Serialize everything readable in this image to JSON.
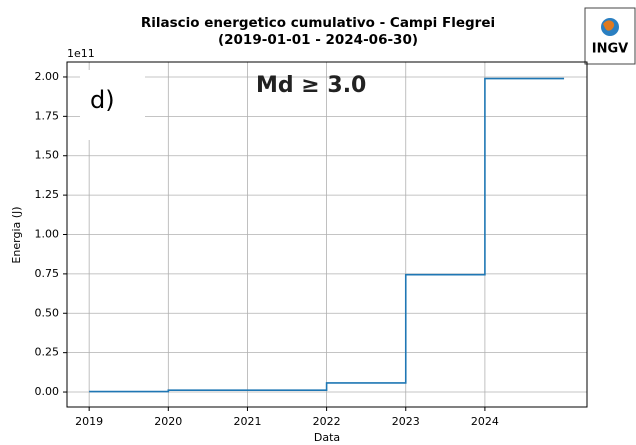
{
  "chart_data": {
    "type": "step",
    "title": "Rilascio energetico cumulativo - Campi Flegrei",
    "subtitle": "(2019-01-01 - 2024-06-30)",
    "xlabel": "Data",
    "ylabel": "Energia (J)",
    "y_offset": "1e11",
    "annotations": [
      "d)",
      "Md ≥ 3.0"
    ],
    "logo": "INGV",
    "x": [
      2019,
      2020,
      2021,
      2022,
      2023,
      2024,
      2025
    ],
    "series": [
      {
        "color": "#1f77b4",
        "values": [
          0.003,
          0.012,
          0.012,
          0.058,
          0.745,
          1.99,
          1.99
        ]
      }
    ],
    "xlim": [
      2018.72,
      2025.29
    ],
    "xticks": [
      2019,
      2020,
      2021,
      2022,
      2023,
      2024
    ],
    "ylim": [
      -0.095,
      2.095
    ],
    "yticks": [
      {
        "value": 0,
        "label": "0.00"
      },
      {
        "value": 0.25,
        "label": "0.25"
      },
      {
        "value": 0.5,
        "label": "0.50"
      },
      {
        "value": 0.75,
        "label": "0.75"
      },
      {
        "value": 1,
        "label": "1.00"
      },
      {
        "value": 1.25,
        "label": "1.25"
      },
      {
        "value": 1.5,
        "label": "1.50"
      },
      {
        "value": 1.75,
        "label": "1.75"
      },
      {
        "value": 2,
        "label": "2.00"
      }
    ],
    "grid": true
  }
}
